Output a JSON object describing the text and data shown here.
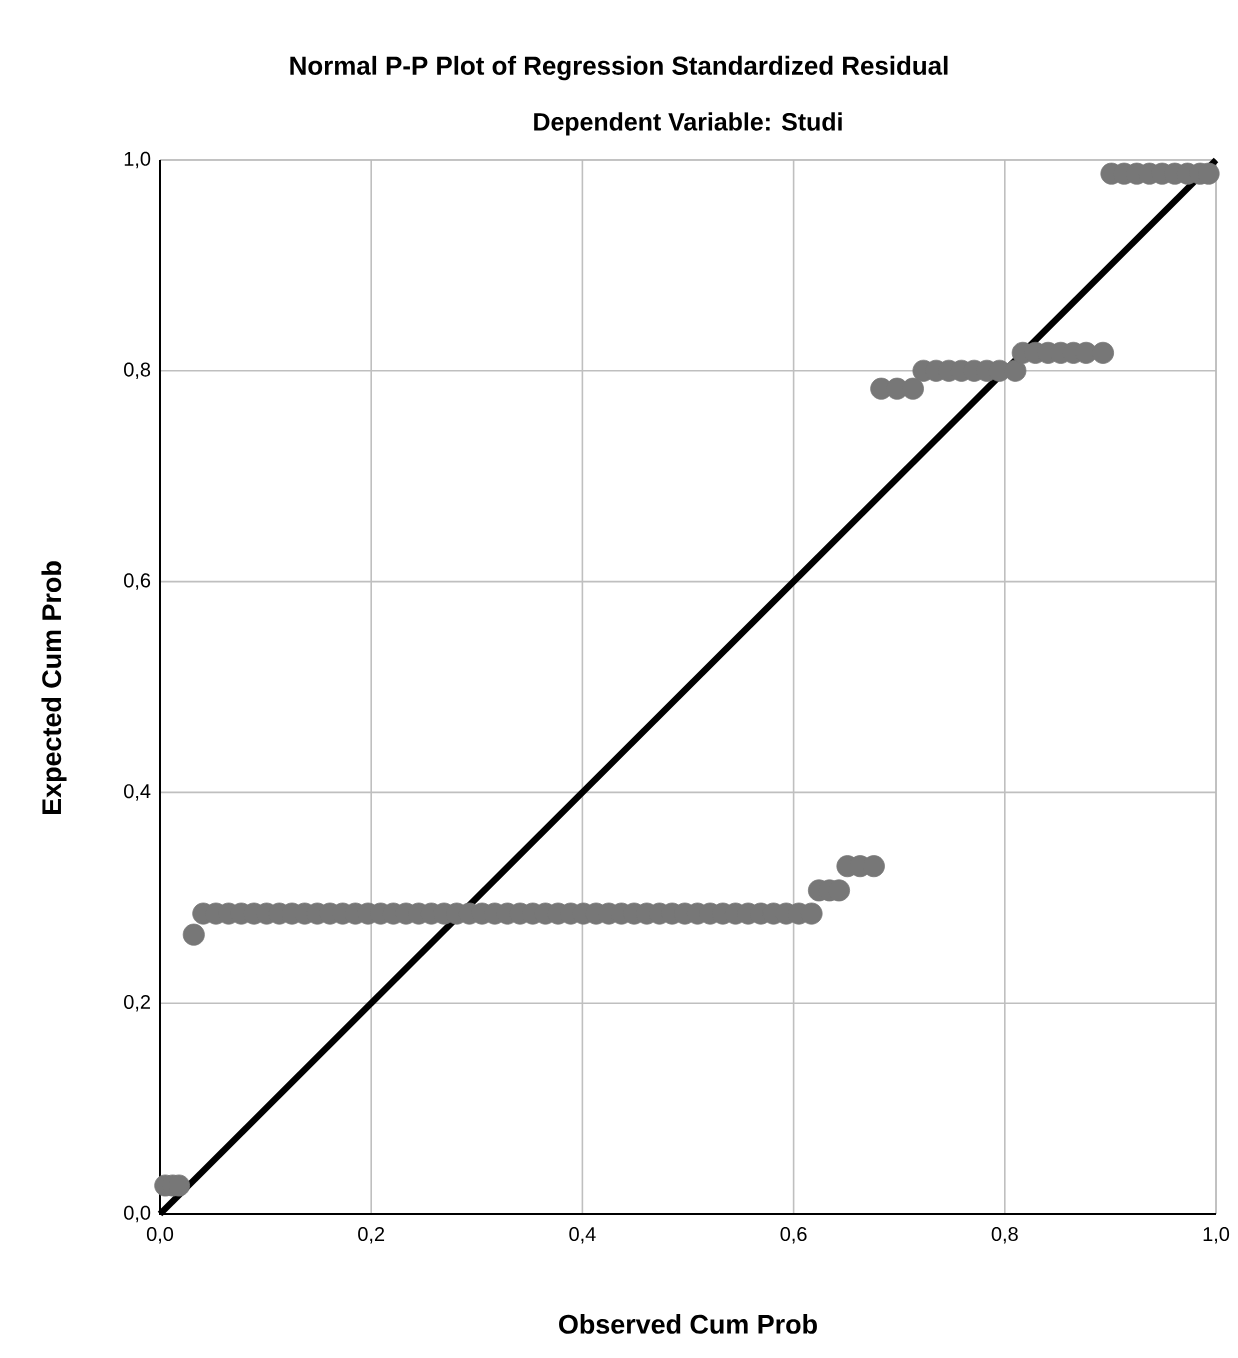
{
  "chart_data": {
    "type": "scatter",
    "title": "Normal P-P Plot of Regression Standardized Residual",
    "subtitle": "Dependent Variable: Studi",
    "xlabel": "Observed Cum Prob",
    "ylabel": "Expected Cum Prob",
    "xlim": [
      0,
      1
    ],
    "ylim": [
      0,
      1
    ],
    "xticks": [
      {
        "value": 0,
        "label": "0,0"
      },
      {
        "value": 0.2,
        "label": "0,2"
      },
      {
        "value": 0.4,
        "label": "0,4"
      },
      {
        "value": 0.6,
        "label": "0,6"
      },
      {
        "value": 0.8,
        "label": "0,8"
      },
      {
        "value": 1,
        "label": "1,0"
      }
    ],
    "yticks": [
      {
        "value": 0,
        "label": "0,0"
      },
      {
        "value": 0.2,
        "label": "0,2"
      },
      {
        "value": 0.4,
        "label": "0,4"
      },
      {
        "value": 0.6,
        "label": "0,6"
      },
      {
        "value": 0.8,
        "label": "0,8"
      },
      {
        "value": 1,
        "label": "1,0"
      }
    ],
    "grid": true,
    "series": [
      {
        "marker": "circle",
        "color": "#777777",
        "x": [
          0.005,
          0.012,
          0.018,
          0.032,
          0.041,
          0.053,
          0.065,
          0.077,
          0.089,
          0.101,
          0.113,
          0.125,
          0.137,
          0.149,
          0.161,
          0.173,
          0.185,
          0.197,
          0.209,
          0.221,
          0.233,
          0.245,
          0.257,
          0.269,
          0.281,
          0.293,
          0.305,
          0.317,
          0.329,
          0.341,
          0.353,
          0.365,
          0.377,
          0.389,
          0.401,
          0.413,
          0.425,
          0.437,
          0.449,
          0.461,
          0.473,
          0.485,
          0.497,
          0.509,
          0.521,
          0.533,
          0.545,
          0.557,
          0.569,
          0.581,
          0.593,
          0.605,
          0.617,
          0.624,
          0.634,
          0.643,
          0.651,
          0.663,
          0.676,
          0.683,
          0.698,
          0.713,
          0.723,
          0.735,
          0.747,
          0.759,
          0.771,
          0.783,
          0.795,
          0.81,
          0.817,
          0.829,
          0.841,
          0.853,
          0.865,
          0.877,
          0.893,
          0.901,
          0.913,
          0.925,
          0.937,
          0.949,
          0.961,
          0.973,
          0.985,
          0.993
        ],
        "values": [
          0.027,
          0.027,
          0.027,
          0.265,
          0.285,
          0.285,
          0.285,
          0.285,
          0.285,
          0.285,
          0.285,
          0.285,
          0.285,
          0.285,
          0.285,
          0.285,
          0.285,
          0.285,
          0.285,
          0.285,
          0.285,
          0.285,
          0.285,
          0.285,
          0.285,
          0.285,
          0.285,
          0.285,
          0.285,
          0.285,
          0.285,
          0.285,
          0.285,
          0.285,
          0.285,
          0.285,
          0.285,
          0.285,
          0.285,
          0.285,
          0.285,
          0.285,
          0.285,
          0.285,
          0.285,
          0.285,
          0.285,
          0.285,
          0.285,
          0.285,
          0.285,
          0.285,
          0.285,
          0.307,
          0.307,
          0.307,
          0.33,
          0.33,
          0.33,
          0.783,
          0.783,
          0.783,
          0.8,
          0.8,
          0.8,
          0.8,
          0.8,
          0.8,
          0.8,
          0.8,
          0.817,
          0.817,
          0.817,
          0.817,
          0.817,
          0.817,
          0.817,
          0.987,
          0.987,
          0.987,
          0.987,
          0.987,
          0.987,
          0.987,
          0.987,
          0.987
        ]
      },
      {
        "type": "line",
        "color": "#000000",
        "marker": "none",
        "line_style": "solid",
        "x": [
          0,
          1
        ],
        "values": [
          0,
          1
        ]
      }
    ]
  }
}
